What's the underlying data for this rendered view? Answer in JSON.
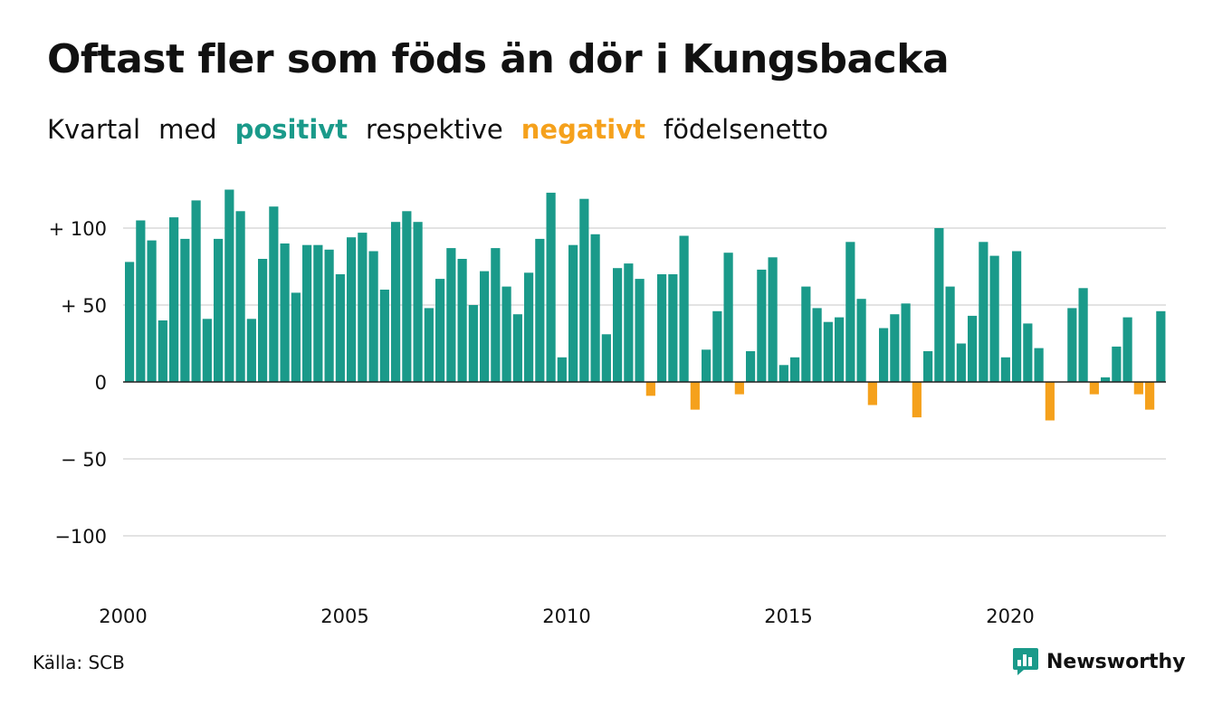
{
  "header": {
    "title": "Oftast fler som föds än dör i Kungsbacka",
    "subtitle_parts": {
      "kvartal": "Kvartal",
      "med": "med",
      "positivt": "positivt",
      "respektive": "respektive",
      "negativt": "negativt",
      "fodelsenetto": "födelsenetto"
    }
  },
  "colors": {
    "positive": "#1a9a8a",
    "negative": "#f5a11c",
    "grid": "#e3e3e3",
    "zero_line": "#222222",
    "text": "#111111"
  },
  "footer": {
    "source": "Källa: SCB",
    "brand_name": "Newsworthy",
    "brand_icon": "bar-chart-speech-bubble-icon"
  },
  "chart_data": {
    "type": "bar",
    "x_start": "2000 Q1",
    "frequency": "quarterly",
    "ylim": [
      -130,
      130
    ],
    "grid": true,
    "y_ticks": [
      {
        "value": 100,
        "label": "+ 100"
      },
      {
        "value": 50,
        "label": "+  50"
      },
      {
        "value": 0,
        "label": "0"
      },
      {
        "value": -50,
        "label": "− 50"
      },
      {
        "value": -100,
        "label": "−100"
      }
    ],
    "x_ticks": [
      {
        "year": 2000,
        "label": "2000"
      },
      {
        "year": 2005,
        "label": "2005"
      },
      {
        "year": 2010,
        "label": "2010"
      },
      {
        "year": 2015,
        "label": "2015"
      },
      {
        "year": 2020,
        "label": "2020"
      }
    ],
    "values": [
      78,
      105,
      92,
      40,
      107,
      93,
      118,
      41,
      93,
      125,
      111,
      41,
      80,
      114,
      90,
      58,
      89,
      89,
      86,
      70,
      94,
      97,
      85,
      60,
      104,
      111,
      104,
      48,
      67,
      87,
      80,
      50,
      72,
      87,
      62,
      44,
      71,
      93,
      123,
      16,
      89,
      119,
      96,
      31,
      74,
      77,
      67,
      -9,
      70,
      70,
      95,
      -18,
      21,
      46,
      84,
      -8,
      20,
      73,
      81,
      11,
      16,
      62,
      48,
      39,
      42,
      91,
      54,
      -15,
      35,
      44,
      51,
      -23,
      20,
      100,
      62,
      25,
      43,
      91,
      82,
      16,
      85,
      38,
      22,
      -25,
      0,
      48,
      61,
      -8,
      3,
      23,
      42,
      -8,
      -18,
      46
    ]
  }
}
